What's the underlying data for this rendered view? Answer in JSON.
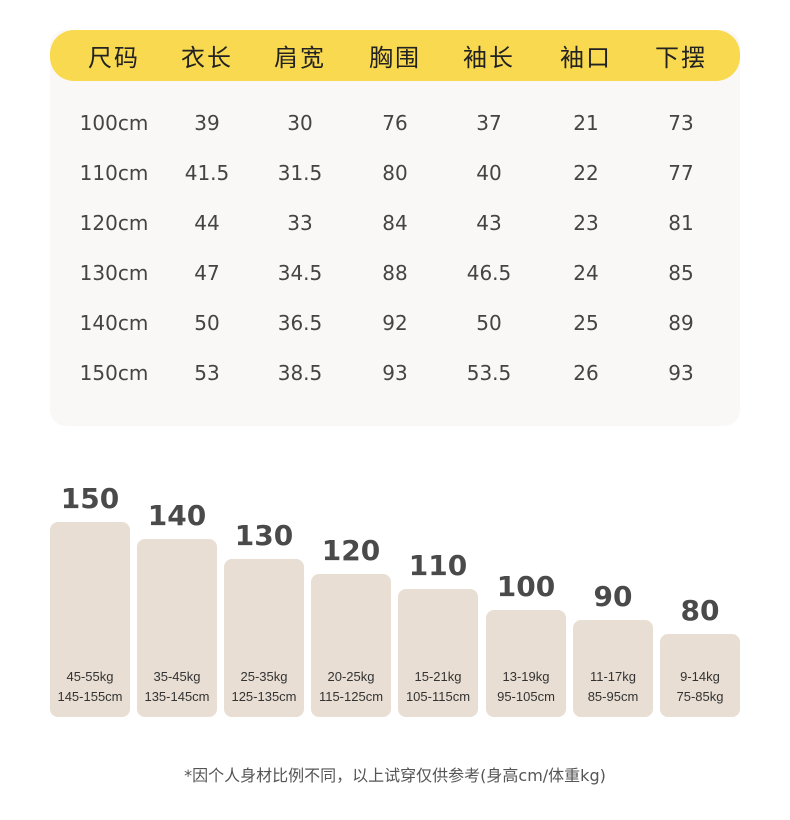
{
  "size_table": {
    "headers": [
      "尺码",
      "衣长",
      "肩宽",
      "胸围",
      "袖长",
      "袖口",
      "下摆"
    ],
    "rows": [
      [
        "100cm",
        "39",
        "30",
        "76",
        "37",
        "21",
        "73"
      ],
      [
        "110cm",
        "41.5",
        "31.5",
        "80",
        "40",
        "22",
        "77"
      ],
      [
        "120cm",
        "44",
        "33",
        "84",
        "43",
        "23",
        "81"
      ],
      [
        "130cm",
        "47",
        "34.5",
        "88",
        "46.5",
        "24",
        "85"
      ],
      [
        "140cm",
        "50",
        "36.5",
        "92",
        "50",
        "25",
        "89"
      ],
      [
        "150cm",
        "53",
        "38.5",
        "93",
        "53.5",
        "26",
        "93"
      ]
    ]
  },
  "size_guide": [
    {
      "size": "150",
      "weight": "45-55kg",
      "height": "145-155cm"
    },
    {
      "size": "140",
      "weight": "35-45kg",
      "height": "135-145cm"
    },
    {
      "size": "130",
      "weight": "25-35kg",
      "height": "125-135cm"
    },
    {
      "size": "120",
      "weight": "20-25kg",
      "height": "115-125cm"
    },
    {
      "size": "110",
      "weight": "15-21kg",
      "height": "105-115cm"
    },
    {
      "size": "100",
      "weight": "13-19kg",
      "height": "95-105cm"
    },
    {
      "size": "90",
      "weight": "11-17kg",
      "height": "85-95cm"
    },
    {
      "size": "80",
      "weight": "9-14kg",
      "height": "75-85kg"
    }
  ],
  "footnote": "*因个人身材比例不同，以上试穿仅供参考(身高cm/体重kg)",
  "colors": {
    "header_yellow": "#f9d94f",
    "table_bg": "#f9f8f6",
    "bar_beige": "#e8ded3"
  }
}
